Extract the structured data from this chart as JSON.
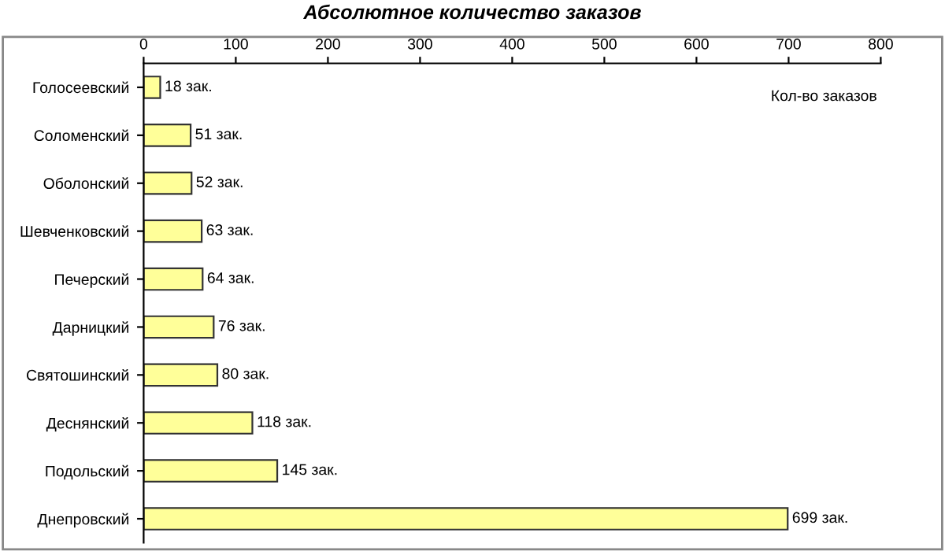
{
  "chart_data": {
    "type": "bar",
    "orientation": "horizontal",
    "title": "Абсолютное количество заказов",
    "xlabel": "Кол-во заказов",
    "categories": [
      "Голосеевский",
      "Соломенский",
      "Оболонский",
      "Шевченковский",
      "Печерский",
      "Дарницкий",
      "Святошинский",
      "Деснянский",
      "Подольский",
      "Днепровский"
    ],
    "values": [
      18,
      51,
      52,
      63,
      64,
      76,
      80,
      118,
      145,
      699
    ],
    "value_labels": [
      "18 зак.",
      "51 зак.",
      "52 зак.",
      "63 зак.",
      "64 зак.",
      "76 зак.",
      "80 зак.",
      "118 зак.",
      "145 зак.",
      "699 зак."
    ],
    "color": "#ffff99",
    "xlim": [
      0,
      800
    ],
    "xticks": [
      0,
      100,
      200,
      300,
      400,
      500,
      600,
      700,
      800
    ],
    "grid": false,
    "legend": false
  }
}
